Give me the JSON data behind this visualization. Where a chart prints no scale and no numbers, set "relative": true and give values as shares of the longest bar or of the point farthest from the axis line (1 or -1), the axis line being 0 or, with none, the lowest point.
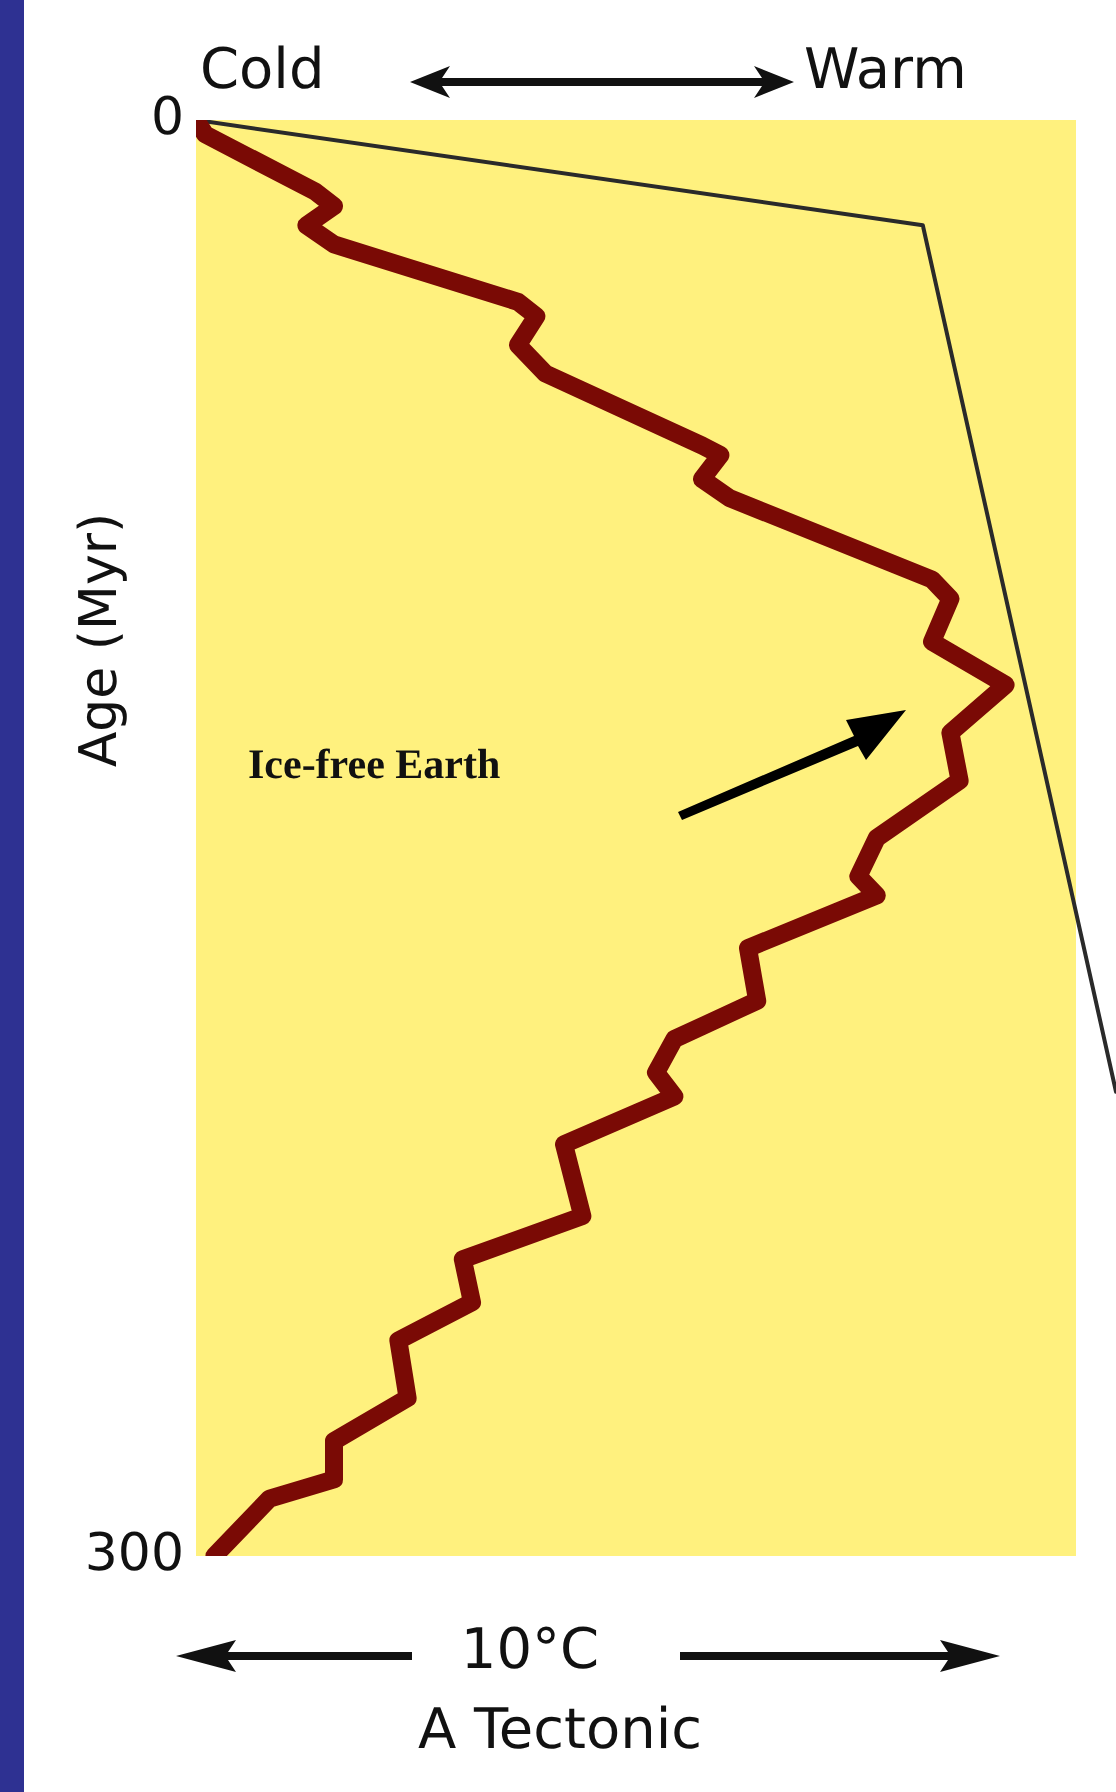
{
  "chart_data": {
    "type": "line",
    "orientation": "horizontal",
    "relative": true,
    "marker": "none",
    "title": "A Tectonic",
    "xlabel": "10°C",
    "ylabel": "Age (Myr)",
    "annotations": [
      "Cold",
      "Warm",
      "Ice-free Earth"
    ],
    "ylim": [
      300,
      0
    ],
    "yticks": [
      0,
      300
    ],
    "series": [
      {
        "color": "#7a0a05",
        "x": [
          0,
          3,
          15,
          18,
          22,
          26,
          38,
          41,
          47,
          53,
          68,
          70,
          75,
          79,
          96,
          100,
          109,
          118,
          128,
          138,
          150,
          158,
          162,
          173,
          184,
          192,
          199,
          204,
          214,
          229,
          238,
          247,
          255,
          267,
          276,
          284,
          288,
          300
        ],
        "values": [
          0,
          0.01,
          0.13,
          0.15,
          0.12,
          0.15,
          0.35,
          0.37,
          0.35,
          0.38,
          0.55,
          0.57,
          0.55,
          0.58,
          0.8,
          0.82,
          0.8,
          0.88,
          0.82,
          0.83,
          0.74,
          0.72,
          0.74,
          0.6,
          0.61,
          0.52,
          0.5,
          0.52,
          0.4,
          0.42,
          0.29,
          0.3,
          0.22,
          0.23,
          0.15,
          0.15,
          0.08,
          0.02
        ]
      },
      {
        "color": "#2a2a2a",
        "x": [
          0,
          22,
          203
        ],
        "values": [
          0,
          0.79,
          1
        ]
      }
    ]
  }
}
